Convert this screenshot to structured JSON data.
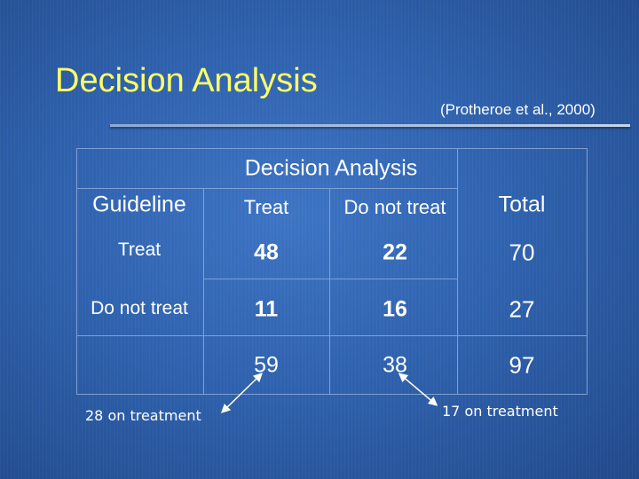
{
  "slide": {
    "title": "Decision Analysis",
    "citation": "(Protheroe et al., 2000)"
  },
  "table": {
    "header": "Decision Analysis",
    "row_header": "Guideline",
    "columns": [
      "Treat",
      "Do not treat",
      "Total"
    ],
    "rows": [
      {
        "label": "Treat",
        "treat": "48",
        "do_not_treat": "22",
        "total": "70"
      },
      {
        "label": "Do not treat",
        "treat": "11",
        "do_not_treat": "16",
        "total": "27"
      },
      {
        "label": "",
        "treat": "59",
        "do_not_treat": "38",
        "total": "97"
      }
    ]
  },
  "annotations": {
    "left": "28 on treatment",
    "right": "17 on treatment"
  },
  "colors": {
    "title": "#ffff66",
    "text": "#ffffff",
    "grid_line": "#7fa0d2"
  }
}
